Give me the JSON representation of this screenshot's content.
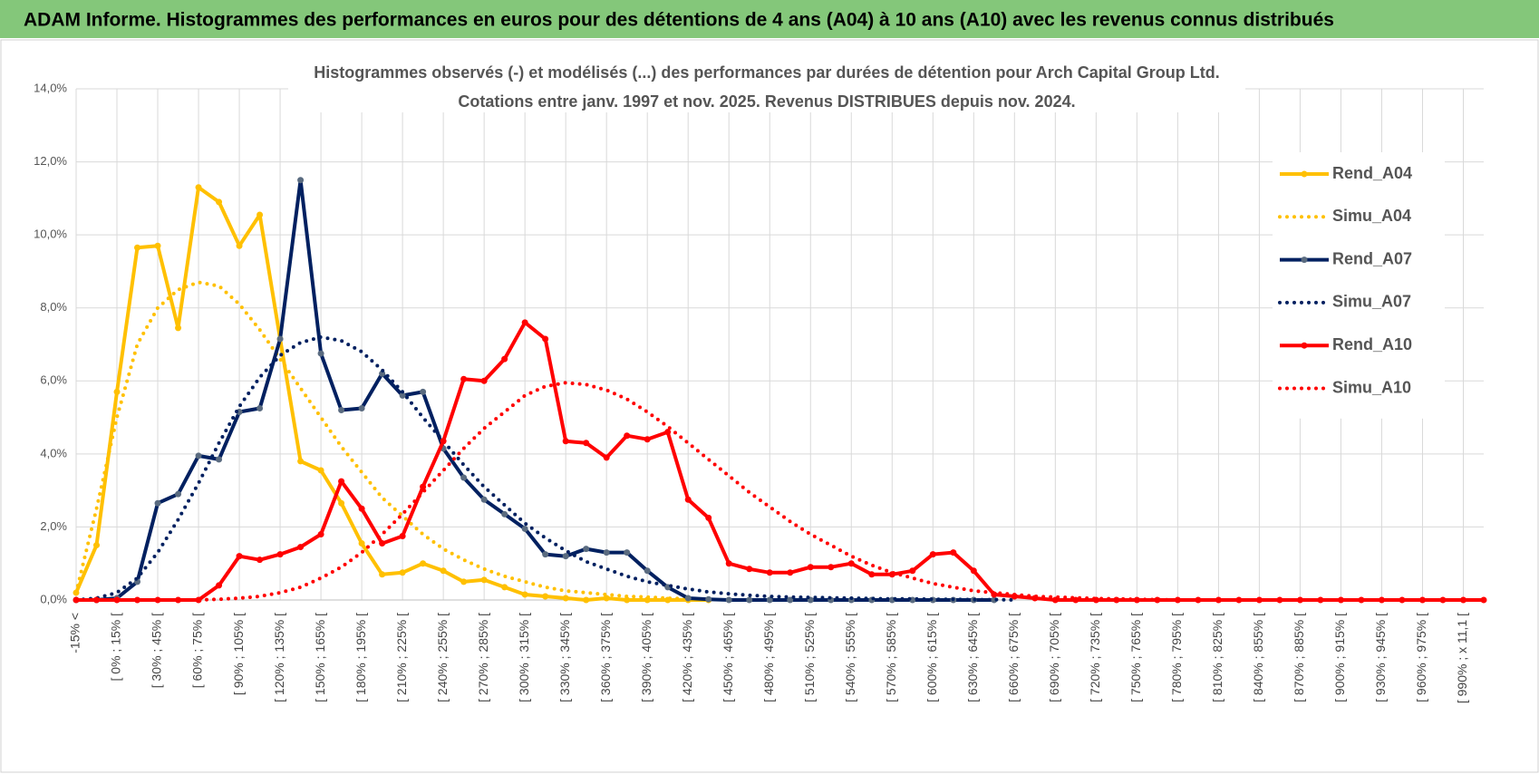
{
  "header": "ADAM Informe. Histogrammes des performances en euros pour des détentions de 4 ans (A04) à 10 ans (A10) avec les revenus connus distribués",
  "chart_data": {
    "type": "line",
    "title": "Histogrammes observés (-) et modélisés (...) des performances par durées de détention pour Arch Capital Group Ltd.",
    "subtitle": "Cotations entre janv. 1997 et nov. 2025. Revenus DISTRIBUES depuis nov. 2024.",
    "categories": [
      "-15% <",
      null,
      "[ 0% ; 15% [",
      null,
      "[ 30% ; 45% [",
      null,
      "[ 60% ; 75% [",
      null,
      "[ 90% ; 105% [",
      null,
      "[ 120% ; 135% [",
      null,
      "[ 150% ; 165% [",
      null,
      "[ 180% ; 195% [",
      null,
      "[ 210% ; 225% [",
      null,
      "[ 240% ; 255% [",
      null,
      "[ 270% ; 285% [",
      null,
      "[ 300% ; 315% [",
      null,
      "[ 330% ; 345% [",
      null,
      "[ 360% ; 375% [",
      null,
      "[ 390% ; 405% [",
      null,
      "[ 420% ; 435% [",
      null,
      "[ 450% ; 465% [",
      null,
      "[ 480% ; 495% [",
      null,
      "[ 510% ; 525% [",
      null,
      "[ 540% ; 555% [",
      null,
      "[ 570% ; 585% [",
      null,
      "[ 600% ; 615% [",
      null,
      "[ 630% ; 645% [",
      null,
      "[ 660% ; 675% [",
      null,
      "[ 690% ; 705% [",
      null,
      "[ 720% ; 735% [",
      null,
      "[ 750% ; 765% [",
      null,
      "[ 780% ; 795% [",
      null,
      "[ 810% ; 825% [",
      null,
      "[ 840% ; 855% [",
      null,
      "[ 870% ; 885% [",
      null,
      "[ 900% ; 915% [",
      null,
      "[ 930% ; 945% [",
      null,
      "[ 960% ; 975% [",
      null,
      "[ 990% ; x 11,1 [",
      null
    ],
    "ylim": [
      0,
      14
    ],
    "yticks": [
      {
        "value": 0,
        "label": "0,0%"
      },
      {
        "value": 2,
        "label": "2,0%"
      },
      {
        "value": 4,
        "label": "4,0%"
      },
      {
        "value": 6,
        "label": "6,0%"
      },
      {
        "value": 8,
        "label": "8,0%"
      },
      {
        "value": 10,
        "label": "10,0%"
      },
      {
        "value": 12,
        "label": "12,0%"
      },
      {
        "value": 14,
        "label": "14,0%"
      }
    ],
    "grid": true,
    "legend": "right",
    "series": [
      {
        "name": "Rend_A04",
        "color": "#ffc000",
        "style": "solid",
        "marker": true,
        "values": [
          0.2,
          1.5,
          5.7,
          9.65,
          9.7,
          7.45,
          11.3,
          10.9,
          9.7,
          10.55,
          7.15,
          3.8,
          3.55,
          2.65,
          1.55,
          0.7,
          0.75,
          1.0,
          0.8,
          0.5,
          0.55,
          0.35,
          0.15,
          0.1,
          0.05,
          0,
          0.05,
          0,
          0,
          0,
          0,
          0,
          null,
          null,
          null,
          null,
          null,
          null,
          null,
          null,
          null,
          null,
          null,
          null,
          null,
          null,
          null,
          null,
          null,
          null,
          null,
          null,
          null,
          null,
          null,
          null,
          null,
          null,
          null,
          null,
          null,
          null,
          null,
          null,
          null,
          null,
          null,
          null,
          null,
          null
        ]
      },
      {
        "name": "Simu_A04",
        "color": "#ffc000",
        "style": "dotted",
        "marker": false,
        "values": [
          0.2,
          2.5,
          5.0,
          7.0,
          8.0,
          8.5,
          8.7,
          8.6,
          8.1,
          7.4,
          6.6,
          5.8,
          5.0,
          4.2,
          3.5,
          2.8,
          2.3,
          1.8,
          1.4,
          1.1,
          0.85,
          0.65,
          0.5,
          0.35,
          0.25,
          0.2,
          0.15,
          0.1,
          0.08,
          0.05,
          0.03,
          0.02,
          null,
          null,
          null,
          null,
          null,
          null,
          null,
          null,
          null,
          null,
          null,
          null,
          null,
          null,
          null,
          null,
          null,
          null,
          null,
          null,
          null,
          null,
          null,
          null,
          null,
          null,
          null,
          null,
          null,
          null,
          null,
          null,
          null,
          null,
          null,
          null,
          null,
          null
        ]
      },
      {
        "name": "Rend_A07",
        "color": "#002060",
        "marker_color": "#5a6b80",
        "style": "solid",
        "marker": true,
        "values": [
          0,
          0,
          0.05,
          0.5,
          2.65,
          2.9,
          3.95,
          3.85,
          5.15,
          5.25,
          7.15,
          11.5,
          6.75,
          5.2,
          5.25,
          6.2,
          5.6,
          5.7,
          4.15,
          3.35,
          2.75,
          2.35,
          1.95,
          1.25,
          1.2,
          1.4,
          1.3,
          1.3,
          0.8,
          0.35,
          0.05,
          0.02,
          0,
          0,
          0,
          0,
          0,
          0,
          0,
          0,
          0,
          0,
          0,
          0,
          0,
          0,
          null,
          null,
          null,
          null,
          null,
          null,
          null,
          null,
          null,
          null,
          null,
          null,
          null,
          null,
          null,
          null,
          null,
          null,
          null,
          null,
          null,
          null,
          null,
          null
        ]
      },
      {
        "name": "Simu_A07",
        "color": "#002060",
        "style": "dotted",
        "marker": false,
        "values": [
          0,
          0.05,
          0.2,
          0.6,
          1.3,
          2.2,
          3.2,
          4.3,
          5.3,
          6.1,
          6.7,
          7.05,
          7.2,
          7.1,
          6.8,
          6.3,
          5.7,
          5.0,
          4.35,
          3.7,
          3.1,
          2.6,
          2.1,
          1.7,
          1.35,
          1.05,
          0.85,
          0.65,
          0.5,
          0.4,
          0.3,
          0.22,
          0.17,
          0.13,
          0.1,
          0.08,
          0.07,
          0.06,
          0.05,
          0.04,
          0.03,
          0.03,
          0.02,
          0.02,
          0.01,
          0.01,
          0,
          null,
          null,
          null,
          null,
          null,
          null,
          null,
          null,
          null,
          null,
          null,
          null,
          null,
          null,
          null,
          null,
          null,
          null,
          null,
          null,
          null,
          null,
          null
        ]
      },
      {
        "name": "Rend_A10",
        "color": "#ff0000",
        "style": "solid",
        "marker": true,
        "values": [
          0,
          0,
          0,
          0,
          0,
          0,
          0,
          0.4,
          1.2,
          1.1,
          1.25,
          1.45,
          1.8,
          3.25,
          2.5,
          1.55,
          1.75,
          3.1,
          4.35,
          6.05,
          6.0,
          6.6,
          7.6,
          7.15,
          4.35,
          4.3,
          3.9,
          4.5,
          4.4,
          4.6,
          2.75,
          2.25,
          1.0,
          0.85,
          0.75,
          0.75,
          0.9,
          0.9,
          1.0,
          0.7,
          0.7,
          0.8,
          1.25,
          1.3,
          0.8,
          0.15,
          0.1,
          0.05,
          0,
          0,
          0,
          0,
          0,
          0,
          0,
          0,
          0,
          0,
          0,
          0,
          0,
          0,
          0,
          0,
          0,
          0,
          0,
          0,
          0,
          0
        ]
      },
      {
        "name": "Simu_A10",
        "color": "#ff0000",
        "style": "dotted",
        "marker": false,
        "values": [
          0,
          0,
          0,
          0,
          0,
          0,
          0,
          0.02,
          0.05,
          0.1,
          0.2,
          0.35,
          0.6,
          0.9,
          1.3,
          1.8,
          2.35,
          2.95,
          3.55,
          4.15,
          4.7,
          5.15,
          5.6,
          5.85,
          5.95,
          5.9,
          5.75,
          5.5,
          5.15,
          4.75,
          4.3,
          3.85,
          3.4,
          2.95,
          2.55,
          2.15,
          1.8,
          1.5,
          1.2,
          0.95,
          0.75,
          0.6,
          0.45,
          0.35,
          0.25,
          0.2,
          0.15,
          0.1,
          0.08,
          0.06,
          0.04,
          0.03,
          0.02,
          0.01,
          0,
          0,
          0,
          0,
          0,
          0,
          0,
          0,
          0,
          0,
          0,
          0,
          0,
          0,
          0,
          0
        ]
      }
    ]
  }
}
